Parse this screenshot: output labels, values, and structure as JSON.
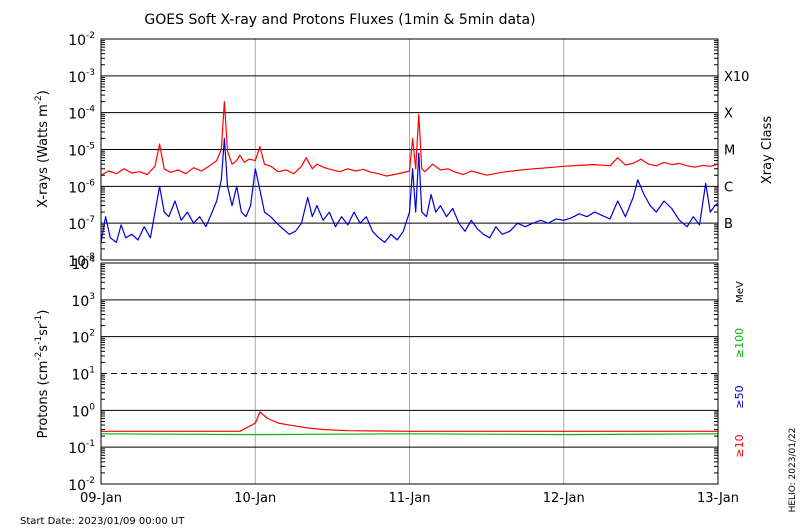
{
  "title": "GOES Soft X-ray and Protons Fluxes   (1min & 5min data)",
  "footer": {
    "start_date": "Start Date: 2023/01/09 00:00 UT",
    "credit": "HELIO: 2023/01/22"
  },
  "chart_data": [
    {
      "type": "line",
      "panel": "xray",
      "ylabel_main": "X-rays (Watts m",
      "ylabel_exp": "-2",
      "ylabel_close": ")",
      "scale": "log",
      "ylim": [
        1e-08,
        0.01
      ],
      "y_ticks": [
        {
          "base": "10",
          "exp": "-8",
          "value": 1e-08
        },
        {
          "base": "10",
          "exp": "-7",
          "value": 1e-07
        },
        {
          "base": "10",
          "exp": "-6",
          "value": 1e-06
        },
        {
          "base": "10",
          "exp": "-5",
          "value": 1e-05
        },
        {
          "base": "10",
          "exp": "-4",
          "value": 0.0001
        },
        {
          "base": "10",
          "exp": "-3",
          "value": 0.001
        },
        {
          "base": "10",
          "exp": "-2",
          "value": 0.01
        }
      ],
      "right_axis_label": "Xray Class",
      "class_labels": [
        {
          "label": "B",
          "value": 1e-07
        },
        {
          "label": "C",
          "value": 1e-06
        },
        {
          "label": "M",
          "value": 1e-05
        },
        {
          "label": "X",
          "value": 0.0001
        },
        {
          "label": "X10",
          "value": 0.001
        }
      ],
      "x_days": [
        0,
        1,
        2,
        3,
        4
      ],
      "series": [
        {
          "color": "#ff0000",
          "points": [
            [
              0.0,
              2e-06
            ],
            [
              0.05,
              2.6e-06
            ],
            [
              0.1,
              2.2e-06
            ],
            [
              0.15,
              3e-06
            ],
            [
              0.2,
              2.3e-06
            ],
            [
              0.25,
              2.5e-06
            ],
            [
              0.3,
              2.1e-06
            ],
            [
              0.35,
              3.5e-06
            ],
            [
              0.38,
              1.4e-05
            ],
            [
              0.41,
              3e-06
            ],
            [
              0.45,
              2.4e-06
            ],
            [
              0.5,
              2.8e-06
            ],
            [
              0.55,
              2.2e-06
            ],
            [
              0.6,
              3.2e-06
            ],
            [
              0.65,
              2.6e-06
            ],
            [
              0.7,
              3.5e-06
            ],
            [
              0.75,
              5e-06
            ],
            [
              0.78,
              1e-05
            ],
            [
              0.8,
              0.0002
            ],
            [
              0.82,
              9e-06
            ],
            [
              0.85,
              4e-06
            ],
            [
              0.88,
              5e-06
            ],
            [
              0.9,
              7e-06
            ],
            [
              0.93,
              4.5e-06
            ],
            [
              0.96,
              5.5e-06
            ],
            [
              1.0,
              5e-06
            ],
            [
              1.03,
              1.2e-05
            ],
            [
              1.06,
              4e-06
            ],
            [
              1.1,
              3.5e-06
            ],
            [
              1.15,
              2.5e-06
            ],
            [
              1.2,
              2.8e-06
            ],
            [
              1.25,
              2.2e-06
            ],
            [
              1.3,
              3.5e-06
            ],
            [
              1.33,
              6e-06
            ],
            [
              1.37,
              3e-06
            ],
            [
              1.4,
              4e-06
            ],
            [
              1.45,
              3.2e-06
            ],
            [
              1.5,
              2.8e-06
            ],
            [
              1.55,
              2.5e-06
            ],
            [
              1.6,
              3e-06
            ],
            [
              1.65,
              2.6e-06
            ],
            [
              1.7,
              2.9e-06
            ],
            [
              1.75,
              2.4e-06
            ],
            [
              1.8,
              2.2e-06
            ],
            [
              1.85,
              1.9e-06
            ],
            [
              1.9,
              2.1e-06
            ],
            [
              1.95,
              2.3e-06
            ],
            [
              2.0,
              2.6e-06
            ],
            [
              2.02,
              2e-05
            ],
            [
              2.04,
              3e-06
            ],
            [
              2.06,
              9e-05
            ],
            [
              2.08,
              3e-06
            ],
            [
              2.1,
              2.5e-06
            ],
            [
              2.15,
              4e-06
            ],
            [
              2.2,
              2.8e-06
            ],
            [
              2.25,
              3e-06
            ],
            [
              2.3,
              2.4e-06
            ],
            [
              2.35,
              2.1e-06
            ],
            [
              2.4,
              2.6e-06
            ],
            [
              2.45,
              2.3e-06
            ],
            [
              2.5,
              2e-06
            ],
            [
              2.55,
              2.2e-06
            ],
            [
              2.6,
              2.4e-06
            ],
            [
              2.7,
              2.7e-06
            ],
            [
              2.8,
              3e-06
            ],
            [
              2.9,
              3.2e-06
            ],
            [
              3.0,
              3.5e-06
            ],
            [
              3.1,
              3.7e-06
            ],
            [
              3.2,
              3.9e-06
            ],
            [
              3.3,
              3.6e-06
            ],
            [
              3.35,
              6e-06
            ],
            [
              3.4,
              3.8e-06
            ],
            [
              3.45,
              4.2e-06
            ],
            [
              3.5,
              5.5e-06
            ],
            [
              3.55,
              4e-06
            ],
            [
              3.6,
              3.6e-06
            ],
            [
              3.65,
              4.5e-06
            ],
            [
              3.7,
              3.9e-06
            ],
            [
              3.75,
              4.2e-06
            ],
            [
              3.8,
              3.6e-06
            ],
            [
              3.85,
              3.3e-06
            ],
            [
              3.9,
              3.7e-06
            ],
            [
              3.95,
              3.5e-06
            ],
            [
              4.0,
              4e-06
            ]
          ]
        },
        {
          "color": "#0000dd",
          "points": [
            [
              0.0,
              3e-08
            ],
            [
              0.03,
              1.5e-07
            ],
            [
              0.06,
              4e-08
            ],
            [
              0.1,
              3e-08
            ],
            [
              0.13,
              9e-08
            ],
            [
              0.16,
              4e-08
            ],
            [
              0.2,
              5e-08
            ],
            [
              0.24,
              3.5e-08
            ],
            [
              0.28,
              8e-08
            ],
            [
              0.32,
              4e-08
            ],
            [
              0.35,
              2e-07
            ],
            [
              0.38,
              1e-06
            ],
            [
              0.41,
              2e-07
            ],
            [
              0.44,
              1.5e-07
            ],
            [
              0.48,
              4e-07
            ],
            [
              0.52,
              1.2e-07
            ],
            [
              0.56,
              2e-07
            ],
            [
              0.6,
              1e-07
            ],
            [
              0.64,
              1.5e-07
            ],
            [
              0.68,
              8e-08
            ],
            [
              0.72,
              2e-07
            ],
            [
              0.75,
              4e-07
            ],
            [
              0.78,
              1.5e-06
            ],
            [
              0.8,
              2e-05
            ],
            [
              0.82,
              1e-06
            ],
            [
              0.85,
              3e-07
            ],
            [
              0.88,
              1e-06
            ],
            [
              0.91,
              2e-07
            ],
            [
              0.94,
              1.5e-07
            ],
            [
              0.97,
              3e-07
            ],
            [
              1.0,
              3e-06
            ],
            [
              1.03,
              8e-07
            ],
            [
              1.06,
              2e-07
            ],
            [
              1.1,
              1.5e-07
            ],
            [
              1.14,
              1e-07
            ],
            [
              1.18,
              7e-08
            ],
            [
              1.22,
              5e-08
            ],
            [
              1.26,
              6e-08
            ],
            [
              1.3,
              1e-07
            ],
            [
              1.34,
              5e-07
            ],
            [
              1.37,
              1.5e-07
            ],
            [
              1.4,
              3e-07
            ],
            [
              1.44,
              1.2e-07
            ],
            [
              1.48,
              2e-07
            ],
            [
              1.52,
              8e-08
            ],
            [
              1.56,
              1.5e-07
            ],
            [
              1.6,
              9e-08
            ],
            [
              1.64,
              2e-07
            ],
            [
              1.68,
              1e-07
            ],
            [
              1.72,
              1.5e-07
            ],
            [
              1.76,
              6e-08
            ],
            [
              1.8,
              4e-08
            ],
            [
              1.84,
              3e-08
            ],
            [
              1.88,
              5e-08
            ],
            [
              1.92,
              3.5e-08
            ],
            [
              1.96,
              6e-08
            ],
            [
              2.0,
              2e-07
            ],
            [
              2.02,
              3e-06
            ],
            [
              2.04,
              2e-07
            ],
            [
              2.06,
              8e-06
            ],
            [
              2.08,
              2e-07
            ],
            [
              2.11,
              1.5e-07
            ],
            [
              2.14,
              6e-07
            ],
            [
              2.17,
              2e-07
            ],
            [
              2.2,
              3e-07
            ],
            [
              2.24,
              1.5e-07
            ],
            [
              2.28,
              2.5e-07
            ],
            [
              2.32,
              1e-07
            ],
            [
              2.36,
              6e-08
            ],
            [
              2.4,
              1.2e-07
            ],
            [
              2.44,
              7e-08
            ],
            [
              2.48,
              5e-08
            ],
            [
              2.52,
              4e-08
            ],
            [
              2.56,
              8e-08
            ],
            [
              2.6,
              5e-08
            ],
            [
              2.65,
              6e-08
            ],
            [
              2.7,
              1e-07
            ],
            [
              2.75,
              8e-08
            ],
            [
              2.8,
              1e-07
            ],
            [
              2.85,
              1.2e-07
            ],
            [
              2.9,
              1e-07
            ],
            [
              2.95,
              1.3e-07
            ],
            [
              3.0,
              1.2e-07
            ],
            [
              3.05,
              1.4e-07
            ],
            [
              3.1,
              1.8e-07
            ],
            [
              3.15,
              1.5e-07
            ],
            [
              3.2,
              2e-07
            ],
            [
              3.25,
              1.6e-07
            ],
            [
              3.3,
              1.3e-07
            ],
            [
              3.35,
              4e-07
            ],
            [
              3.4,
              1.5e-07
            ],
            [
              3.45,
              5e-07
            ],
            [
              3.48,
              1.5e-06
            ],
            [
              3.52,
              6e-07
            ],
            [
              3.56,
              3e-07
            ],
            [
              3.6,
              2e-07
            ],
            [
              3.65,
              4e-07
            ],
            [
              3.7,
              2.5e-07
            ],
            [
              3.75,
              1.2e-07
            ],
            [
              3.8,
              8e-08
            ],
            [
              3.84,
              1.5e-07
            ],
            [
              3.88,
              9e-08
            ],
            [
              3.92,
              1.2e-06
            ],
            [
              3.95,
              2e-07
            ],
            [
              3.98,
              3e-07
            ],
            [
              4.0,
              3.5e-07
            ]
          ]
        }
      ]
    },
    {
      "type": "line",
      "panel": "protons",
      "ylabel_main": "Protons (cm",
      "ylabel_e1": "-2",
      "ylabel_mid": "s",
      "ylabel_e2": "-1",
      "ylabel_mid2": "sr",
      "ylabel_e3": "-1",
      "ylabel_close": ")",
      "scale": "log",
      "ylim": [
        0.01,
        10000
      ],
      "y_ticks": [
        {
          "base": "10",
          "exp": "-2",
          "value": 0.01
        },
        {
          "base": "10",
          "exp": "-1",
          "value": 0.1
        },
        {
          "base": "10",
          "exp": "0",
          "value": 1
        },
        {
          "base": "10",
          "exp": "1",
          "value": 10
        },
        {
          "base": "10",
          "exp": "2",
          "value": 100
        },
        {
          "base": "10",
          "exp": "3",
          "value": 1000
        },
        {
          "base": "10",
          "exp": "4",
          "value": 10000
        }
      ],
      "threshold": 10,
      "x_days": [
        0,
        1,
        2,
        3,
        4
      ],
      "x_tick_labels": [
        "09-Jan",
        "10-Jan",
        "11-Jan",
        "12-Jan",
        "13-Jan"
      ],
      "energy_unit": "MeV",
      "legend": [
        {
          "label": "≥100",
          "color": "#00bb00"
        },
        {
          "label": "≥50",
          "color": "#0000dd"
        },
        {
          "label": "≥10",
          "color": "#ff0000"
        }
      ],
      "series": [
        {
          "color": "#00bb00",
          "points": [
            [
              0.0,
              0.23
            ],
            [
              1.0,
              0.22
            ],
            [
              2.0,
              0.23
            ],
            [
              3.0,
              0.22
            ],
            [
              4.0,
              0.23
            ]
          ]
        },
        {
          "color": "#ff0000",
          "points": [
            [
              0.0,
              0.27
            ],
            [
              0.9,
              0.27
            ],
            [
              1.0,
              0.45
            ],
            [
              1.03,
              0.9
            ],
            [
              1.08,
              0.6
            ],
            [
              1.15,
              0.45
            ],
            [
              1.25,
              0.38
            ],
            [
              1.35,
              0.33
            ],
            [
              1.45,
              0.3
            ],
            [
              1.6,
              0.28
            ],
            [
              2.0,
              0.27
            ],
            [
              3.0,
              0.27
            ],
            [
              4.0,
              0.27
            ]
          ]
        }
      ]
    }
  ]
}
